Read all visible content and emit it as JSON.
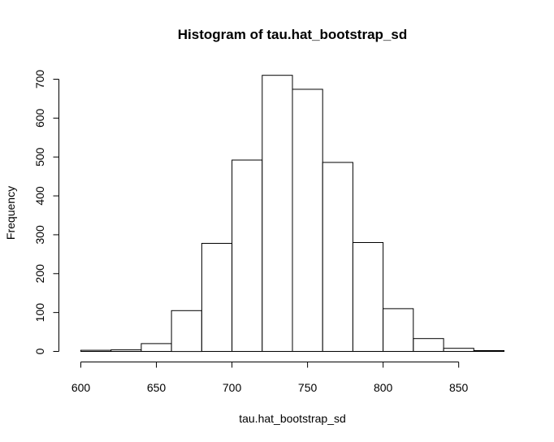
{
  "chart_data": {
    "type": "bar",
    "title": "Histogram of tau.hat_bootstrap_sd",
    "xlabel": "tau.hat_bootstrap_sd",
    "ylabel": "Frequency",
    "bin_edges": [
      600,
      620,
      640,
      660,
      680,
      700,
      720,
      740,
      760,
      780,
      800,
      820,
      840,
      860,
      880
    ],
    "values": [
      3,
      4,
      20,
      105,
      278,
      492,
      710,
      674,
      486,
      280,
      110,
      33,
      8,
      2
    ],
    "xlim": [
      600,
      880
    ],
    "ylim": [
      0,
      700
    ],
    "x_ticks": [
      600,
      650,
      700,
      750,
      800,
      850
    ],
    "y_ticks": [
      0,
      100,
      200,
      300,
      400,
      500,
      600,
      700
    ],
    "grid": false,
    "legend": "none"
  }
}
